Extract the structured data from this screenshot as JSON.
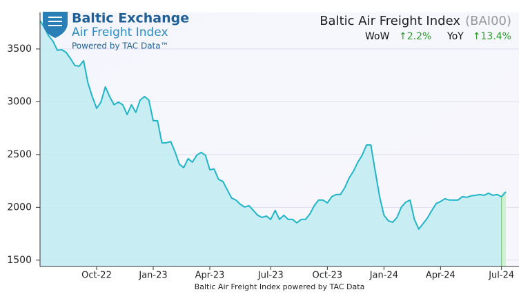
{
  "chart_data": {
    "type": "line",
    "title": "Baltic Air Freight Index",
    "subtitle": "(BAI00)",
    "logo": {
      "name": "Baltic Exchange",
      "product": "Air Freight Index",
      "powered": "Powered by TAC Data™"
    },
    "stats": [
      {
        "label": "WoW",
        "value": "↑2.2%"
      },
      {
        "label": "YoY",
        "value": "↑13.4%"
      }
    ],
    "x_label": "Baltic Air Freight Index powered by TAC Data",
    "color": "#1fb4c8",
    "fill": "#bfecf2",
    "grid": true,
    "ylim": [
      1440,
      3846
    ],
    "yticks": [
      1500,
      2000,
      2500,
      3000,
      3500
    ],
    "categories": [
      null,
      null,
      null,
      null,
      null,
      null,
      null,
      null,
      null,
      null,
      null,
      null,
      null,
      "Oct-22",
      null,
      null,
      null,
      null,
      null,
      null,
      null,
      null,
      null,
      null,
      null,
      null,
      "Jan-23",
      null,
      null,
      null,
      null,
      null,
      null,
      null,
      null,
      null,
      null,
      null,
      null,
      "Apr-23",
      null,
      null,
      null,
      null,
      null,
      null,
      null,
      null,
      null,
      null,
      null,
      null,
      null,
      "Jul-23",
      null,
      null,
      null,
      null,
      null,
      null,
      null,
      null,
      null,
      null,
      null,
      null,
      "Oct-23",
      null,
      null,
      null,
      null,
      null,
      null,
      null,
      null,
      null,
      null,
      null,
      null,
      "Jan-24",
      null,
      null,
      null,
      null,
      null,
      null,
      null,
      null,
      null,
      null,
      null,
      null,
      "Apr-24",
      null,
      null,
      null,
      null,
      null,
      null,
      null,
      null,
      null,
      null,
      null,
      null,
      null,
      "Jul-24",
      null
    ],
    "values": [
      3768,
      3703,
      3624,
      3572,
      3487,
      3493,
      3467,
      3408,
      3343,
      3337,
      3389,
      3180,
      3049,
      2938,
      2997,
      3141,
      3049,
      2971,
      2997,
      2971,
      2879,
      2971,
      2899,
      3016,
      3049,
      3016,
      2820,
      2820,
      2611,
      2611,
      2624,
      2526,
      2408,
      2376,
      2461,
      2428,
      2494,
      2520,
      2494,
      2356,
      2363,
      2265,
      2245,
      2167,
      2088,
      2069,
      2029,
      2003,
      2016,
      1971,
      1925,
      1905,
      1918,
      1886,
      1971,
      1886,
      1925,
      1886,
      1886,
      1853,
      1886,
      1886,
      1938,
      2016,
      2069,
      2069,
      2042,
      2101,
      2121,
      2121,
      2186,
      2278,
      2343,
      2428,
      2494,
      2591,
      2591,
      2343,
      2101,
      1925,
      1873,
      1859,
      1905,
      2003,
      2049,
      2069,
      1886,
      1794,
      1846,
      1899,
      1971,
      2036,
      2055,
      2082,
      2069,
      2069,
      2069,
      2101,
      2095,
      2108,
      2114,
      2121,
      2114,
      2134,
      2114,
      2121,
      2101,
      2147
    ]
  }
}
